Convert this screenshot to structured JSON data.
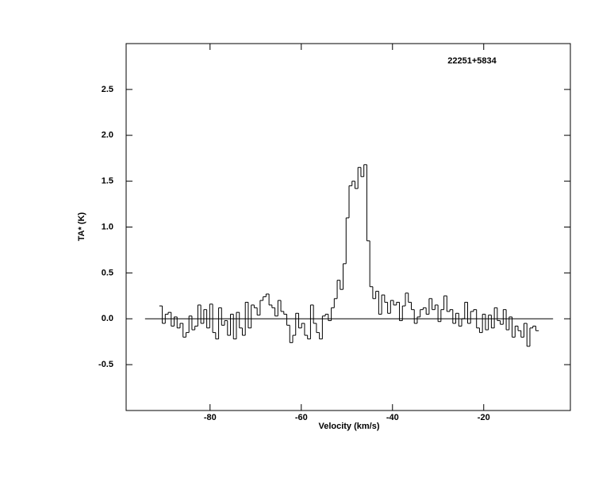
{
  "chart_data": {
    "type": "step",
    "title": "22251+5834",
    "xlabel": "Velocity (km/s)",
    "ylabel": "TA* (K)",
    "x": [
      -90.8,
      -90.15,
      -89.5,
      -88.85,
      -88.2,
      -87.55,
      -86.9,
      -86.25,
      -85.6,
      -84.95,
      -84.3,
      -83.65,
      -83.0,
      -82.35,
      -81.7,
      -81.05,
      -80.4,
      -79.75,
      -79.1,
      -78.45,
      -77.8,
      -77.15,
      -76.5,
      -75.85,
      -75.2,
      -74.55,
      -73.9,
      -73.25,
      -72.6,
      -71.95,
      -71.3,
      -70.65,
      -70.0,
      -69.35,
      -68.7,
      -68.05,
      -67.4,
      -66.75,
      -66.1,
      -65.45,
      -64.8,
      -64.15,
      -63.5,
      -62.85,
      -62.2,
      -61.55,
      -60.9,
      -60.25,
      -59.6,
      -58.95,
      -58.3,
      -57.65,
      -57.0,
      -56.35,
      -55.7,
      -55.05,
      -54.4,
      -53.75,
      -53.1,
      -52.45,
      -51.8,
      -51.15,
      -50.5,
      -49.85,
      -49.2,
      -48.55,
      -47.9,
      -47.25,
      -46.6,
      -45.95,
      -45.3,
      -44.65,
      -44.0,
      -43.35,
      -42.7,
      -42.05,
      -41.4,
      -40.75,
      -40.1,
      -39.45,
      -38.8,
      -38.15,
      -37.5,
      -36.85,
      -36.2,
      -35.55,
      -34.9,
      -34.25,
      -33.6,
      -32.95,
      -32.3,
      -31.65,
      -31.0,
      -30.35,
      -29.7,
      -29.05,
      -28.4,
      -27.75,
      -27.1,
      -26.45,
      -25.8,
      -25.15,
      -24.5,
      -23.85,
      -23.2,
      -22.55,
      -21.9,
      -21.25,
      -20.6,
      -19.95,
      -19.3,
      -18.65,
      -18.0,
      -17.35,
      -16.7,
      -16.05,
      -15.4,
      -14.75,
      -14.1,
      -13.45,
      -12.8,
      -12.15,
      -11.5,
      -10.85,
      -10.2,
      -9.55,
      -8.9,
      -8.25
    ],
    "values": [
      0.14,
      -0.05,
      0.05,
      0.07,
      -0.08,
      0.02,
      -0.1,
      -0.05,
      -0.2,
      -0.15,
      0.03,
      -0.12,
      -0.08,
      0.15,
      -0.05,
      0.1,
      -0.1,
      0.16,
      -0.15,
      -0.22,
      0.12,
      -0.07,
      -0.02,
      -0.18,
      0.05,
      -0.22,
      0.07,
      -0.1,
      -0.18,
      0.18,
      -0.1,
      0.15,
      0.12,
      0.04,
      0.2,
      0.24,
      0.27,
      0.15,
      0.12,
      0.03,
      0.2,
      0.08,
      0.05,
      -0.07,
      -0.26,
      -0.18,
      0.06,
      -0.1,
      -0.05,
      -0.18,
      -0.22,
      0.15,
      -0.05,
      -0.15,
      -0.22,
      0.03,
      0.05,
      -0.02,
      0.12,
      0.22,
      0.42,
      0.32,
      0.6,
      1.1,
      1.45,
      1.5,
      1.42,
      1.65,
      1.55,
      1.68,
      0.85,
      0.35,
      0.22,
      0.3,
      0.05,
      0.26,
      0.18,
      0.06,
      0.2,
      0.15,
      0.18,
      -0.02,
      0.14,
      0.28,
      0.18,
      0.1,
      -0.05,
      0.02,
      0.1,
      0.12,
      0.05,
      0.22,
      0.1,
      0.15,
      -0.03,
      0.1,
      0.25,
      0.08,
      0.1,
      -0.05,
      0.06,
      -0.08,
      0.0,
      0.18,
      -0.05,
      0.08,
      0.1,
      -0.1,
      -0.15,
      0.05,
      -0.12,
      0.04,
      -0.1,
      0.12,
      -0.02,
      -0.06,
      0.1,
      -0.12,
      0.02,
      -0.2,
      -0.08,
      -0.13,
      -0.2,
      -0.05,
      -0.3,
      -0.1,
      -0.08,
      -0.13
    ],
    "color": "#000000",
    "hline": 0,
    "xlim": [
      -98.4,
      -1.0
    ],
    "ylim": [
      -1.0,
      3.0
    ],
    "xticks": [
      -80,
      -60,
      -40,
      -20
    ],
    "yticks": [
      -0.5,
      {
        "value": 0,
        "label": "0.0"
      },
      0.5,
      {
        "value": 1,
        "label": "1.0"
      },
      1.5,
      {
        "value": 2,
        "label": "2.0"
      },
      2.5
    ]
  }
}
